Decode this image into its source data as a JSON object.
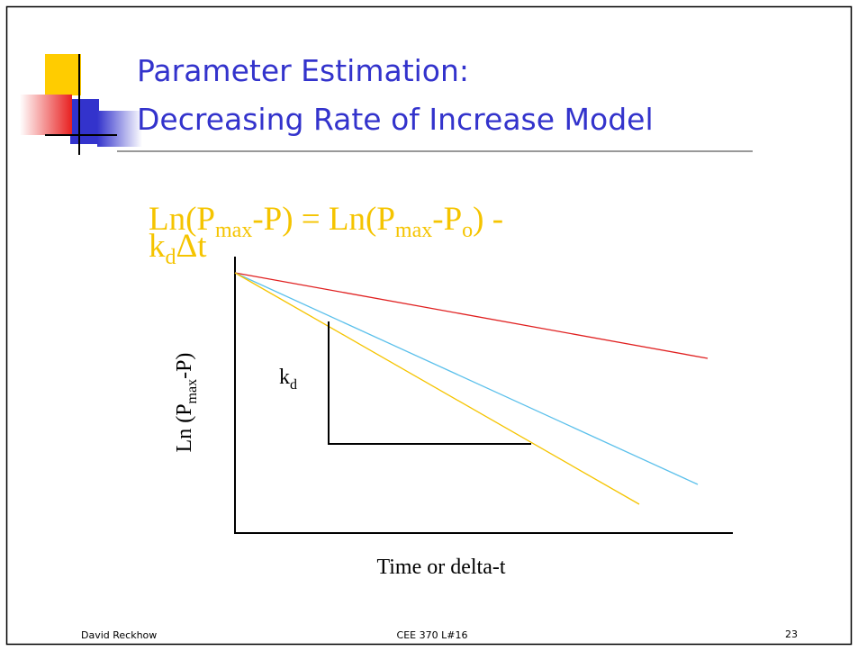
{
  "title": {
    "lines": [
      "Parameter Estimation:",
      "Decreasing Rate of Increase Model"
    ]
  },
  "equation": {
    "line1": [
      "Ln(P",
      "max",
      "-P) = Ln(P",
      "max",
      "-P",
      "o",
      ") -"
    ],
    "line2": [
      "k",
      "d",
      "Δt"
    ]
  },
  "diagram": {
    "y_axis_label": [
      "Ln (P",
      "max",
      "-P)"
    ],
    "x_axis_label": "Time or delta-t",
    "slope_label": [
      "k",
      "d"
    ]
  },
  "footer": {
    "author": "David Reckhow",
    "course": "CEE 370 L#16",
    "page": "23"
  }
}
